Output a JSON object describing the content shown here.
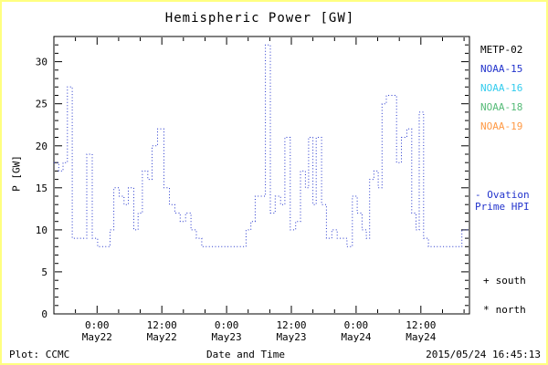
{
  "colors": {
    "line": "#2233cc",
    "frame": "#000000",
    "border": "#ffff80",
    "background": "#ffffff"
  },
  "title": "Hemispheric Power [GW]",
  "footer": {
    "plot_credit": "Plot: CCMC",
    "xlabel": "Date and Time",
    "timestamp": "2015/05/24 16:45:13"
  },
  "legend": {
    "satellites": [
      {
        "label": "METP-02",
        "color": "#000000"
      },
      {
        "label": "NOAA-15",
        "color": "#2233cc"
      },
      {
        "label": "NOAA-16",
        "color": "#33ccee"
      },
      {
        "label": "NOAA-18",
        "color": "#55bb77"
      },
      {
        "label": "NOAA-19",
        "color": "#ff9944"
      }
    ],
    "model_note": {
      "line1": "- Ovation",
      "line2": "Prime HPI",
      "color": "#2233cc"
    },
    "markers": [
      {
        "symbol": "+",
        "label": "south"
      },
      {
        "symbol": "*",
        "label": "north"
      }
    ]
  },
  "chart_data": {
    "type": "line",
    "step": true,
    "line_style": "dotted",
    "title": "Hemispheric Power [GW]",
    "xlabel": "Date and Time",
    "ylabel": "P [GW]",
    "ylim": [
      0,
      33
    ],
    "y_major_ticks": [
      0,
      5,
      10,
      15,
      20,
      25,
      30
    ],
    "y_minor_step": 1,
    "x_range_hours": [
      0,
      77
    ],
    "x_minor_step_hours": 4,
    "x_major_ticks": [
      {
        "hour": 8,
        "time": "0:00",
        "date": "May22"
      },
      {
        "hour": 20,
        "time": "12:00",
        "date": "May22"
      },
      {
        "hour": 32,
        "time": "0:00",
        "date": "May23"
      },
      {
        "hour": 44,
        "time": "12:00",
        "date": "May23"
      },
      {
        "hour": 56,
        "time": "0:00",
        "date": "May24"
      },
      {
        "hour": 68,
        "time": "12:00",
        "date": "May24"
      }
    ],
    "points_hour_gw": [
      [
        0,
        18
      ],
      [
        0.9,
        17
      ],
      [
        1.7,
        18
      ],
      [
        2.5,
        27
      ],
      [
        3.4,
        9
      ],
      [
        5.4,
        9
      ],
      [
        6.1,
        19
      ],
      [
        7.1,
        9
      ],
      [
        8.1,
        8
      ],
      [
        9.9,
        8
      ],
      [
        10.4,
        10
      ],
      [
        11.1,
        15
      ],
      [
        12.1,
        14
      ],
      [
        13,
        13
      ],
      [
        13.8,
        15
      ],
      [
        14.8,
        10
      ],
      [
        15.6,
        12
      ],
      [
        16.4,
        17
      ],
      [
        17.4,
        16
      ],
      [
        18.2,
        20
      ],
      [
        19.2,
        22
      ],
      [
        20.4,
        15
      ],
      [
        21.4,
        13
      ],
      [
        22.4,
        12
      ],
      [
        23.4,
        11
      ],
      [
        24.4,
        12
      ],
      [
        25.4,
        10
      ],
      [
        26.4,
        9
      ],
      [
        27.4,
        8
      ],
      [
        34.8,
        8
      ],
      [
        35.6,
        10
      ],
      [
        36.5,
        11
      ],
      [
        37.3,
        14
      ],
      [
        38.3,
        14
      ],
      [
        39.2,
        32
      ],
      [
        40.1,
        12
      ],
      [
        41,
        14
      ],
      [
        42,
        13
      ],
      [
        42.8,
        21
      ],
      [
        43.8,
        10
      ],
      [
        44.8,
        11
      ],
      [
        45.7,
        17
      ],
      [
        46.6,
        15
      ],
      [
        47.2,
        21
      ],
      [
        48,
        13
      ],
      [
        48.6,
        21
      ],
      [
        49.6,
        13
      ],
      [
        50.5,
        9
      ],
      [
        51.5,
        10
      ],
      [
        52.5,
        9
      ],
      [
        53.5,
        9
      ],
      [
        54.3,
        8
      ],
      [
        55.3,
        14
      ],
      [
        56.2,
        12
      ],
      [
        57.1,
        10
      ],
      [
        57.9,
        9
      ],
      [
        58.5,
        16
      ],
      [
        59.3,
        17
      ],
      [
        60.1,
        15
      ],
      [
        60.8,
        25
      ],
      [
        61.6,
        26
      ],
      [
        62.6,
        26
      ],
      [
        63.5,
        18
      ],
      [
        64.4,
        21
      ],
      [
        65.4,
        22
      ],
      [
        66.3,
        12
      ],
      [
        67.1,
        10
      ],
      [
        67.7,
        24
      ],
      [
        68.5,
        9
      ],
      [
        69.4,
        8
      ],
      [
        74.2,
        8
      ],
      [
        75.6,
        10
      ],
      [
        77,
        10
      ]
    ]
  }
}
